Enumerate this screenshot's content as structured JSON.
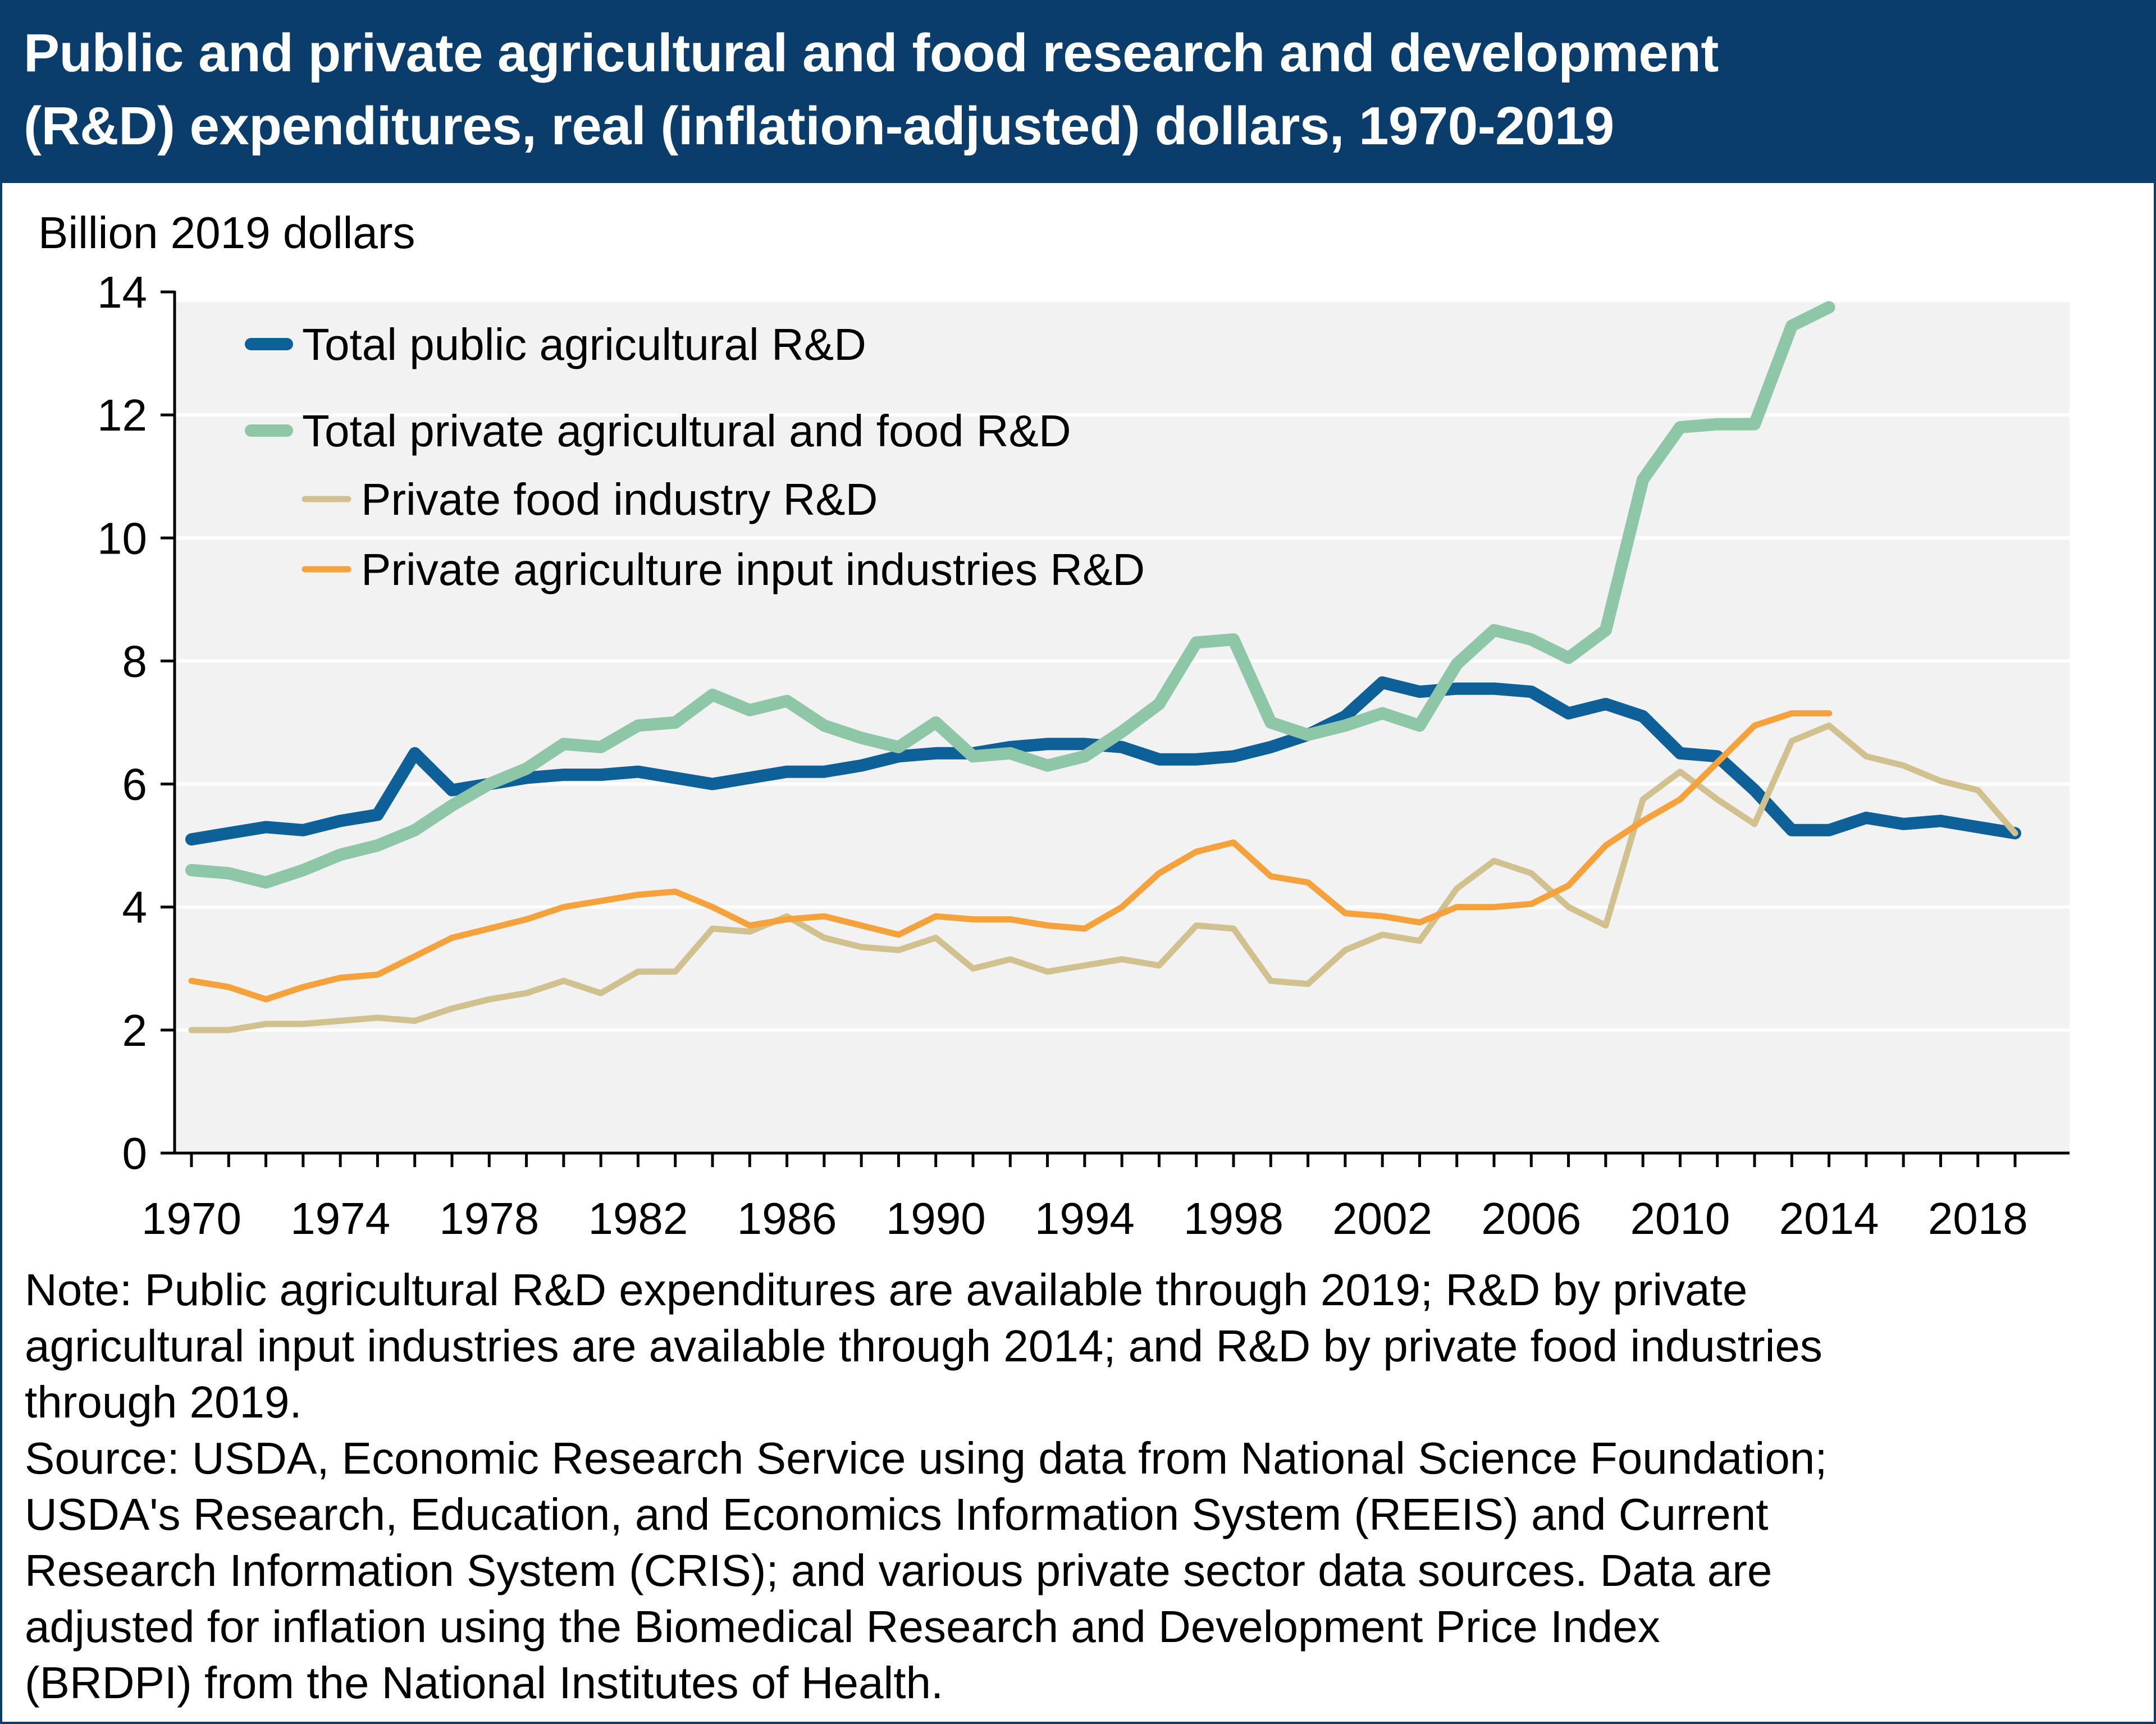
{
  "title_lines": [
    "Public and private agricultural and food research and development",
    "(R&D) expenditures, real (inflation-adjusted) dollars, 1970-2019"
  ],
  "note_lines": [
    "Note: Public agricultural R&D expenditures are available through 2019; R&D by private",
    "agricultural input industries are available through 2014; and R&D by private food industries",
    "through 2019.",
    "Source: USDA, Economic Research Service using data from National Science Foundation;",
    "USDA's Research, Education, and Economics Information System (REEIS) and Current",
    "Research Information System (CRIS); and various private sector data sources. Data are",
    "adjusted for inflation using the Biomedical Research and Development Price Index",
    "(BRDPI) from the National Institutes of Health."
  ],
  "chart_data": {
    "type": "line",
    "title": "Public and private agricultural and food research and development (R&D) expenditures, real (inflation-adjusted) dollars, 1970-2019",
    "ylabel": "Billion 2019 dollars",
    "xlabel": "",
    "xlim": [
      1970,
      2019
    ],
    "ylim": [
      0,
      14
    ],
    "x_ticks": [
      1970,
      1974,
      1978,
      1982,
      1986,
      1990,
      1994,
      1998,
      2002,
      2006,
      2010,
      2014,
      2018
    ],
    "y_ticks": [
      0,
      2,
      4,
      6,
      8,
      10,
      12,
      14
    ],
    "grid": "horizontal",
    "legend_position": "top-left",
    "x": [
      1970,
      1971,
      1972,
      1973,
      1974,
      1975,
      1976,
      1977,
      1978,
      1979,
      1980,
      1981,
      1982,
      1983,
      1984,
      1985,
      1986,
      1987,
      1988,
      1989,
      1990,
      1991,
      1992,
      1993,
      1994,
      1995,
      1996,
      1997,
      1998,
      1999,
      2000,
      2001,
      2002,
      2003,
      2004,
      2005,
      2006,
      2007,
      2008,
      2009,
      2010,
      2011,
      2012,
      2013,
      2014,
      2015,
      2016,
      2017,
      2018,
      2019
    ],
    "series": [
      {
        "name": "Total public agricultural R&D",
        "color": "#0e6198",
        "width": "thick",
        "values": [
          5.1,
          5.2,
          5.3,
          5.25,
          5.4,
          5.5,
          6.5,
          5.9,
          6.0,
          6.1,
          6.15,
          6.15,
          6.2,
          6.1,
          6.0,
          6.1,
          6.2,
          6.2,
          6.3,
          6.45,
          6.5,
          6.5,
          6.6,
          6.65,
          6.65,
          6.6,
          6.4,
          6.4,
          6.45,
          6.6,
          6.8,
          7.1,
          7.65,
          7.5,
          7.55,
          7.55,
          7.5,
          7.15,
          7.3,
          7.1,
          6.5,
          6.45,
          5.9,
          5.25,
          5.25,
          5.45,
          5.35,
          5.4,
          5.3,
          5.2
        ]
      },
      {
        "name": "Total private agricultural and food R&D",
        "color": "#8ec7a8",
        "width": "thick",
        "values": [
          4.6,
          4.55,
          4.4,
          4.6,
          4.85,
          5.0,
          5.25,
          5.65,
          6.0,
          6.25,
          6.65,
          6.6,
          6.95,
          7.0,
          7.45,
          7.2,
          7.35,
          6.95,
          6.75,
          6.6,
          7.0,
          6.45,
          6.5,
          6.3,
          6.45,
          6.85,
          7.3,
          8.3,
          8.35,
          7.0,
          6.8,
          6.95,
          7.15,
          6.95,
          7.95,
          8.5,
          8.35,
          8.05,
          8.5,
          10.95,
          11.8,
          11.85,
          11.85,
          13.45,
          13.75,
          null,
          null,
          null,
          null,
          null
        ]
      },
      {
        "name": "Private food industry R&D",
        "color": "#d1c18f",
        "width": "thin",
        "values": [
          2.0,
          2.0,
          2.1,
          2.1,
          2.15,
          2.2,
          2.15,
          2.35,
          2.5,
          2.6,
          2.8,
          2.6,
          2.95,
          2.95,
          3.65,
          3.6,
          3.85,
          3.5,
          3.35,
          3.3,
          3.5,
          3.0,
          3.15,
          2.95,
          3.05,
          3.15,
          3.05,
          3.7,
          3.65,
          2.8,
          2.75,
          3.3,
          3.55,
          3.45,
          4.3,
          4.75,
          4.55,
          4.0,
          3.7,
          5.75,
          6.2,
          5.75,
          5.35,
          6.7,
          6.95,
          6.45,
          6.3,
          6.05,
          5.9,
          5.2
        ]
      },
      {
        "name": "Private agriculture input industries R&D",
        "color": "#f6a23c",
        "width": "thin",
        "values": [
          2.8,
          2.7,
          2.5,
          2.7,
          2.85,
          2.9,
          3.2,
          3.5,
          3.65,
          3.8,
          4.0,
          4.1,
          4.2,
          4.25,
          4.0,
          3.7,
          3.8,
          3.85,
          3.7,
          3.55,
          3.85,
          3.8,
          3.8,
          3.7,
          3.65,
          4.0,
          4.55,
          4.9,
          5.05,
          4.5,
          4.4,
          3.9,
          3.85,
          3.75,
          4.0,
          4.0,
          4.05,
          4.35,
          5.0,
          5.4,
          5.75,
          6.35,
          6.95,
          7.15,
          7.15,
          null,
          null,
          null,
          null,
          null
        ]
      }
    ]
  }
}
